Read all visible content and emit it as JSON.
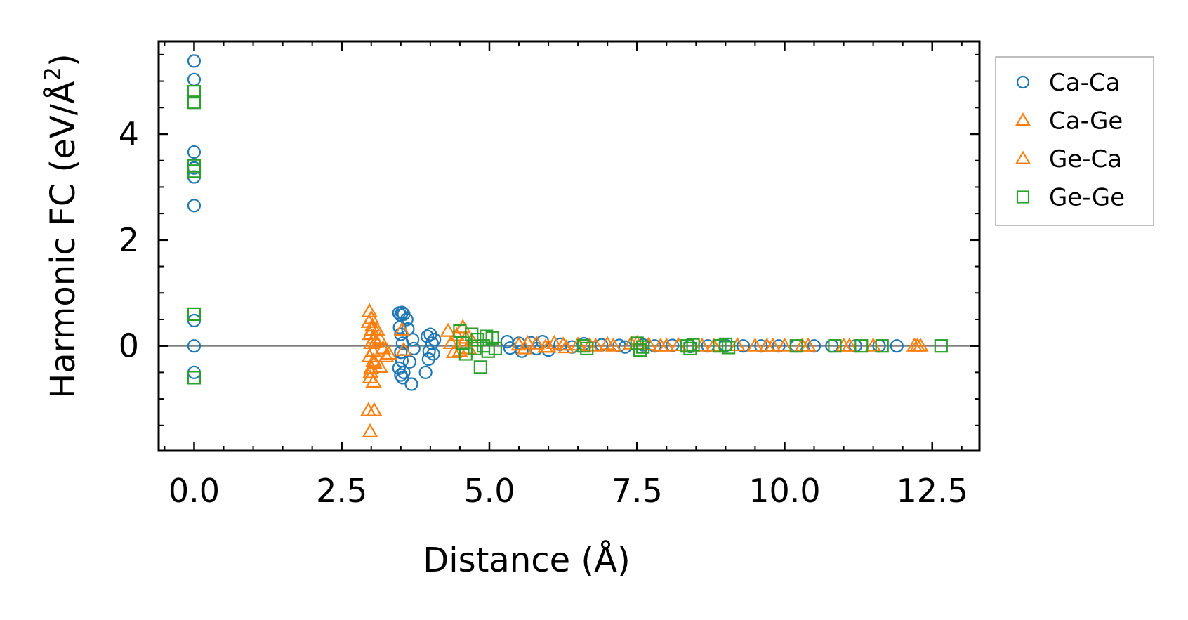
{
  "chart_data": {
    "type": "scatter",
    "xlabel": "Distance (Å)",
    "ylabel_main": "Harmonic FC (eV/Å",
    "ylabel_sup": "2",
    "ylabel_close": ")",
    "xlim": [
      -0.6,
      13.3
    ],
    "ylim": [
      -1.98,
      5.75
    ],
    "xticks": [
      0.0,
      2.5,
      5.0,
      7.5,
      10.0,
      12.5
    ],
    "xtick_labels": [
      "0.0",
      "2.5",
      "5.0",
      "7.5",
      "10.0",
      "12.5"
    ],
    "yticks": [
      0,
      2,
      4
    ],
    "ytick_labels": [
      "0",
      "2",
      "4"
    ],
    "reference_line_y": 0,
    "legend_position": "outside-right-top",
    "series": [
      {
        "name": "Ca-Ca",
        "marker": "circle",
        "color": "#1f77b4",
        "points": [
          [
            0,
            5.38
          ],
          [
            0,
            5.03
          ],
          [
            0,
            3.66
          ],
          [
            0,
            3.36
          ],
          [
            0,
            3.19
          ],
          [
            0,
            2.65
          ],
          [
            0,
            0.48
          ],
          [
            0,
            0.0
          ],
          [
            0,
            -0.5
          ],
          [
            3.47,
            0.62
          ],
          [
            3.5,
            0.58
          ],
          [
            3.52,
            0.63
          ],
          [
            3.55,
            0.6
          ],
          [
            3.48,
            0.35
          ],
          [
            3.5,
            0.22
          ],
          [
            3.53,
            0.05
          ],
          [
            3.5,
            -0.12
          ],
          [
            3.52,
            -0.28
          ],
          [
            3.47,
            -0.42
          ],
          [
            3.55,
            -0.5
          ],
          [
            3.5,
            -0.55
          ],
          [
            3.53,
            -0.6
          ],
          [
            3.6,
            0.5
          ],
          [
            3.65,
            -0.3
          ],
          [
            3.68,
            -0.72
          ],
          [
            3.62,
            0.32
          ],
          [
            3.7,
            0.12
          ],
          [
            3.72,
            -0.05
          ],
          [
            3.95,
            0.18
          ],
          [
            3.98,
            -0.1
          ],
          [
            4.0,
            0.22
          ],
          [
            4.03,
            0.05
          ],
          [
            3.97,
            -0.25
          ],
          [
            4.05,
            -0.15
          ],
          [
            3.92,
            -0.5
          ],
          [
            4.07,
            0.12
          ],
          [
            5.3,
            0.08
          ],
          [
            5.35,
            -0.04
          ],
          [
            5.5,
            0.05
          ],
          [
            5.55,
            -0.1
          ],
          [
            5.7,
            0.06
          ],
          [
            5.8,
            -0.05
          ],
          [
            5.9,
            0.08
          ],
          [
            6.0,
            -0.08
          ],
          [
            6.2,
            0.03
          ],
          [
            6.4,
            -0.02
          ],
          [
            6.6,
            0.04
          ],
          [
            6.9,
            0.02
          ],
          [
            7.2,
            0.01
          ],
          [
            7.3,
            -0.02
          ],
          [
            7.6,
            0.02
          ],
          [
            7.8,
            0.0
          ],
          [
            8.1,
            0.01
          ],
          [
            8.4,
            -0.01
          ],
          [
            8.7,
            0.0
          ],
          [
            9.0,
            0.01
          ],
          [
            9.3,
            0.0
          ],
          [
            9.6,
            0.0
          ],
          [
            9.9,
            0.0
          ],
          [
            10.2,
            0.0
          ],
          [
            10.5,
            0.0
          ],
          [
            10.8,
            0.0
          ],
          [
            11.2,
            0.0
          ],
          [
            11.6,
            0.0
          ],
          [
            11.9,
            0.0
          ]
        ]
      },
      {
        "name": "Ca-Ge",
        "marker": "triangle",
        "color": "#ff7f0e",
        "points": [
          [
            2.97,
            0.65
          ],
          [
            3.0,
            0.52
          ],
          [
            3.02,
            0.38
          ],
          [
            2.98,
            0.22
          ],
          [
            3.05,
            0.15
          ],
          [
            3.0,
            0.05
          ],
          [
            3.03,
            -0.1
          ],
          [
            2.97,
            -0.2
          ],
          [
            3.05,
            -0.32
          ],
          [
            3.0,
            -0.42
          ],
          [
            2.98,
            -0.6
          ],
          [
            3.04,
            -0.68
          ],
          [
            2.95,
            -1.22
          ],
          [
            3.05,
            -1.22
          ],
          [
            2.98,
            -1.62
          ],
          [
            3.1,
            0.3
          ],
          [
            3.15,
            0.12
          ],
          [
            3.2,
            -0.05
          ],
          [
            3.25,
            -0.2
          ],
          [
            3.15,
            -0.4
          ],
          [
            3.52,
            0.3
          ],
          [
            3.55,
            -0.08
          ],
          [
            4.3,
            0.28
          ],
          [
            4.35,
            0.05
          ],
          [
            4.4,
            -0.12
          ],
          [
            4.55,
            0.35
          ],
          [
            4.6,
            0.15
          ],
          [
            4.65,
            -0.05
          ],
          [
            4.7,
            0.1
          ],
          [
            5.5,
            0.02
          ],
          [
            5.6,
            -0.05
          ],
          [
            5.8,
            0.04
          ],
          [
            6.0,
            -0.02
          ],
          [
            6.1,
            0.05
          ],
          [
            6.3,
            -0.03
          ],
          [
            6.5,
            0.02
          ],
          [
            6.8,
            0.0
          ],
          [
            7.0,
            0.03
          ],
          [
            7.5,
            0.05
          ],
          [
            7.7,
            0.02
          ],
          [
            7.9,
            0.0
          ],
          [
            8.2,
            0.01
          ],
          [
            8.6,
            0.0
          ],
          [
            9.2,
            0.01
          ],
          [
            9.5,
            0.0
          ],
          [
            9.8,
            0.0
          ],
          [
            10.0,
            0.0
          ],
          [
            10.4,
            0.0
          ],
          [
            11.0,
            0.0
          ],
          [
            11.5,
            0.0
          ],
          [
            12.2,
            0.0
          ],
          [
            12.3,
            0.0
          ]
        ]
      },
      {
        "name": "Ge-Ca",
        "marker": "triangle",
        "color": "#ff7f0e",
        "points": [
          [
            2.96,
            0.45
          ],
          [
            3.01,
            0.3
          ],
          [
            3.04,
            -0.28
          ],
          [
            2.99,
            -0.5
          ],
          [
            3.08,
            0.08
          ],
          [
            3.3,
            -0.15
          ],
          [
            4.45,
            0.2
          ],
          [
            4.5,
            -0.1
          ],
          [
            5.65,
            0.05
          ],
          [
            5.95,
            -0.02
          ],
          [
            6.25,
            0.02
          ],
          [
            6.7,
            0.01
          ],
          [
            7.1,
            0.0
          ],
          [
            7.4,
            0.04
          ],
          [
            8.0,
            0.0
          ],
          [
            8.8,
            0.0
          ],
          [
            9.7,
            0.0
          ],
          [
            10.3,
            0.0
          ],
          [
            11.1,
            0.0
          ],
          [
            12.25,
            0.0
          ]
        ]
      },
      {
        "name": "Ge-Ge",
        "marker": "square",
        "color": "#2ca02c",
        "points": [
          [
            0,
            4.8
          ],
          [
            0,
            4.6
          ],
          [
            0,
            3.4
          ],
          [
            0,
            3.3
          ],
          [
            0,
            0.6
          ],
          [
            0,
            -0.6
          ],
          [
            4.5,
            0.28
          ],
          [
            4.55,
            0.05
          ],
          [
            4.6,
            -0.15
          ],
          [
            4.7,
            0.22
          ],
          [
            4.75,
            -0.05
          ],
          [
            4.8,
            0.12
          ],
          [
            4.85,
            -0.4
          ],
          [
            4.9,
            0.0
          ],
          [
            4.95,
            0.18
          ],
          [
            4.98,
            -0.1
          ],
          [
            5.05,
            0.15
          ],
          [
            5.1,
            -0.05
          ],
          [
            6.6,
            0.0
          ],
          [
            6.65,
            -0.05
          ],
          [
            7.5,
            0.05
          ],
          [
            7.55,
            -0.08
          ],
          [
            7.6,
            -0.02
          ],
          [
            8.35,
            0.0
          ],
          [
            8.4,
            -0.05
          ],
          [
            8.45,
            0.02
          ],
          [
            8.9,
            0.0
          ],
          [
            9.0,
            0.03
          ],
          [
            9.05,
            -0.03
          ],
          [
            10.2,
            0.0
          ],
          [
            10.85,
            0.0
          ],
          [
            11.3,
            0.0
          ],
          [
            11.65,
            0.0
          ],
          [
            12.65,
            0.0
          ]
        ]
      }
    ]
  }
}
